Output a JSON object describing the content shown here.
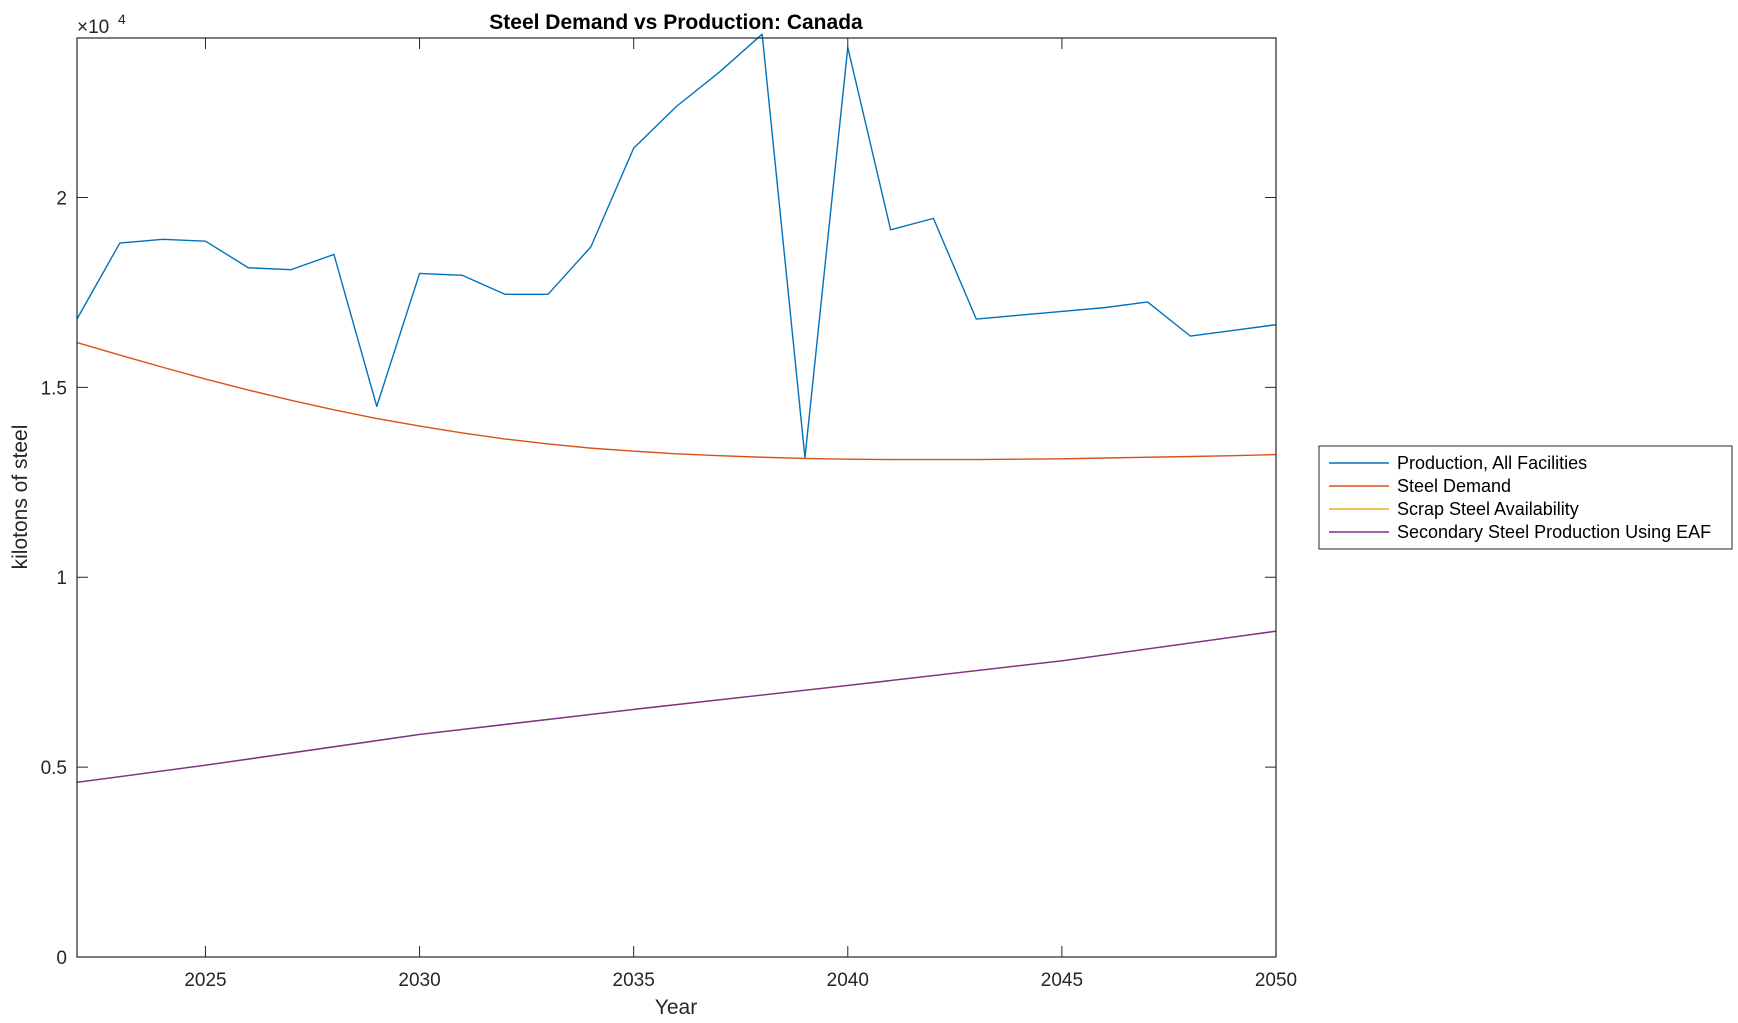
{
  "chart_data": {
    "type": "line",
    "title": "Steel Demand vs Production: Canada",
    "xlabel": "Year",
    "ylabel": "kilotons of steel",
    "y_exponent_label": "×10",
    "y_exponent": "4",
    "xlim": [
      2022,
      2050
    ],
    "ylim": [
      0,
      24200
    ],
    "x_ticks": [
      2025,
      2030,
      2035,
      2040,
      2045,
      2050
    ],
    "y_ticks": [
      0,
      5000,
      10000,
      15000,
      20000
    ],
    "y_tick_labels": [
      "0",
      "0.5",
      "1",
      "1.5",
      "2"
    ],
    "grid": false,
    "box": true,
    "legend_position": "outside-right",
    "series": [
      {
        "name": "Production, All Facilities",
        "color": "#0072BD",
        "x": [
          2022,
          2023,
          2024,
          2025,
          2026,
          2027,
          2028,
          2029,
          2030,
          2031,
          2032,
          2033,
          2034,
          2035,
          2036,
          2037,
          2038,
          2039,
          2040,
          2041,
          2042,
          2043,
          2044,
          2045,
          2046,
          2047,
          2048,
          2049,
          2050
        ],
        "y": [
          16800,
          18800,
          18900,
          18850,
          18150,
          18100,
          18500,
          14500,
          18000,
          17950,
          17450,
          17450,
          18700,
          21300,
          22400,
          23300,
          24300,
          13150,
          23950,
          19150,
          19450,
          16800,
          16900,
          17000,
          17100,
          17250,
          16350,
          16500,
          16650
        ]
      },
      {
        "name": "Steel Demand",
        "color": "#D95319",
        "x": [
          2022,
          2023,
          2024,
          2025,
          2026,
          2027,
          2028,
          2029,
          2030,
          2031,
          2032,
          2033,
          2034,
          2035,
          2036,
          2037,
          2038,
          2039,
          2040,
          2041,
          2042,
          2043,
          2044,
          2045,
          2046,
          2047,
          2048,
          2049,
          2050
        ],
        "y": [
          16180,
          15850,
          15530,
          15220,
          14930,
          14660,
          14410,
          14180,
          13980,
          13800,
          13640,
          13510,
          13400,
          13320,
          13250,
          13200,
          13160,
          13130,
          13110,
          13100,
          13100,
          13100,
          13110,
          13120,
          13140,
          13160,
          13180,
          13200,
          13230
        ]
      },
      {
        "name": "Scrap Steel Availability",
        "color": "#EDB120",
        "x": [
          2022,
          2025,
          2030,
          2035,
          2040,
          2045,
          2050
        ],
        "y": [
          4600,
          5050,
          5860,
          6520,
          7150,
          7800,
          8580
        ]
      },
      {
        "name": "Secondary Steel Production Using EAF",
        "color": "#7E2F8E",
        "x": [
          2022,
          2025,
          2030,
          2035,
          2040,
          2045,
          2050
        ],
        "y": [
          4600,
          5050,
          5860,
          6520,
          7150,
          7800,
          8580
        ]
      }
    ]
  }
}
